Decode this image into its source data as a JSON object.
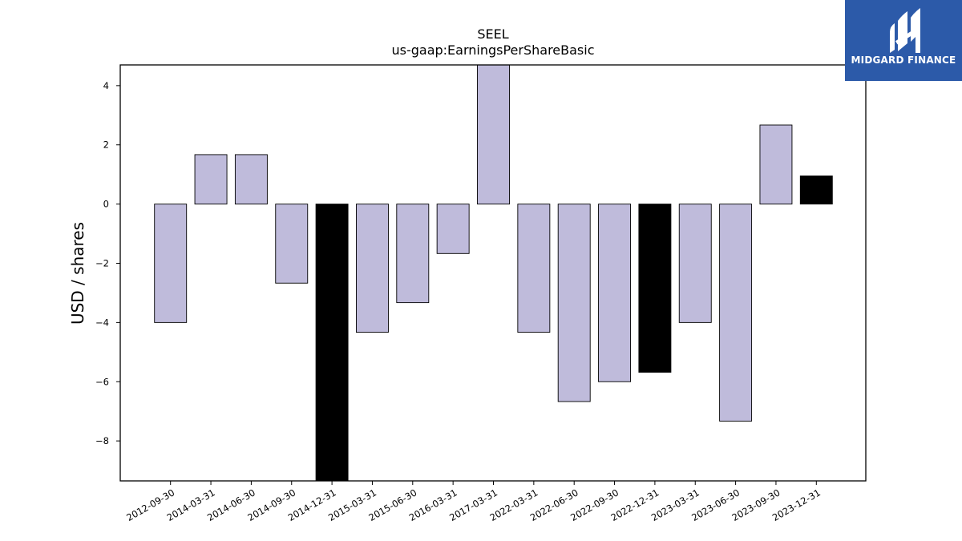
{
  "chart_data": {
    "type": "bar",
    "title": "SEEL",
    "subtitle": "us-gaap:EarningsPerShareBasic",
    "ylabel": "USD / shares",
    "xlabel": "",
    "ylim": [
      -9.35,
      4.7
    ],
    "yticks": [
      -8,
      -6,
      -4,
      -2,
      0,
      2,
      4
    ],
    "ytick_labels": [
      "−8",
      "−6",
      "−4",
      "−2",
      "0",
      "2",
      "4"
    ],
    "grid": false,
    "categories": [
      "2012-09-30",
      "2014-03-31",
      "2014-06-30",
      "2014-09-30",
      "2014-12-31",
      "2015-03-31",
      "2015-06-30",
      "2016-03-31",
      "2017-03-31",
      "2022-03-31",
      "2022-06-30",
      "2022-09-30",
      "2022-12-31",
      "2023-03-31",
      "2023-06-30",
      "2023-09-30",
      "2023-12-31"
    ],
    "values": [
      -4.0,
      1.67,
      1.67,
      -2.67,
      -9.35,
      -4.33,
      -3.33,
      -1.67,
      4.7,
      -4.33,
      -6.67,
      -6.0,
      -5.68,
      -4.0,
      -7.33,
      2.67,
      0.95
    ],
    "colors": [
      "#bfbbdb",
      "#bfbbdb",
      "#bfbbdb",
      "#bfbbdb",
      "#000000",
      "#bfbbdb",
      "#bfbbdb",
      "#bfbbdb",
      "#bfbbdb",
      "#bfbbdb",
      "#bfbbdb",
      "#bfbbdb",
      "#000000",
      "#bfbbdb",
      "#bfbbdb",
      "#bfbbdb",
      "#000000"
    ]
  },
  "logo": {
    "text": "MIDGARD FINANCE",
    "background": "#2c5aa9"
  }
}
